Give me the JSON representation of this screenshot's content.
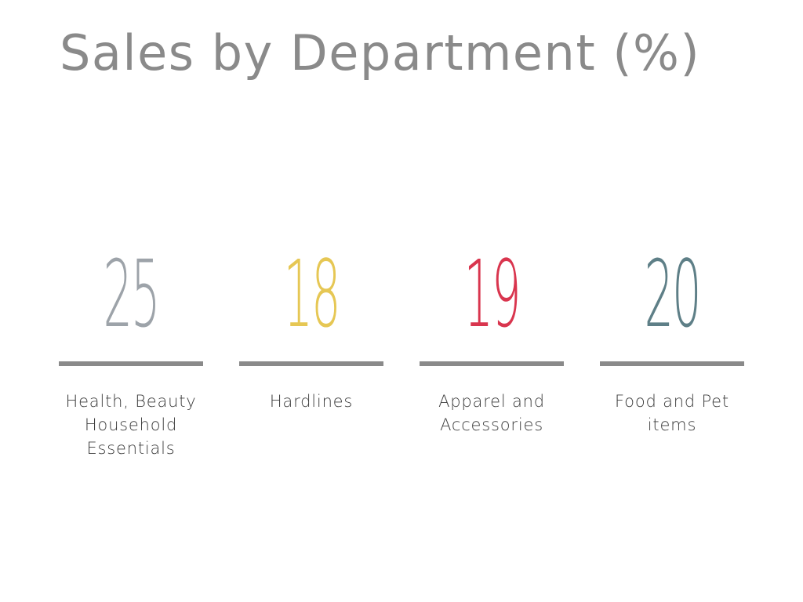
{
  "chart_data": {
    "type": "table",
    "title": "Sales by Department (%)",
    "categories": [
      "Health, Beauty Household Essentials",
      "Hardlines",
      "Apparel and Accessories",
      "Food and Pet items"
    ],
    "values": [
      25,
      18,
      19,
      20
    ],
    "colors": [
      "#9da3a9",
      "#e6c754",
      "#d9354e",
      "#5e7f87"
    ],
    "rule_color": "#8a8a8a",
    "title_color": "#8a8a8a"
  }
}
